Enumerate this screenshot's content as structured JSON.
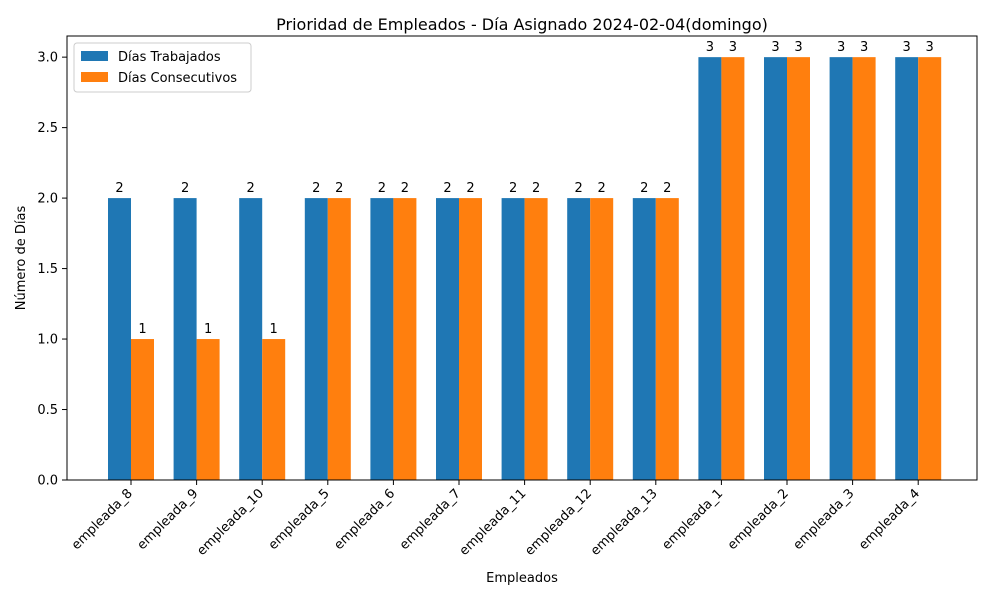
{
  "chart_data": {
    "type": "bar",
    "title": "Prioridad de Empleados - Día Asignado 2024-02-04(domingo)",
    "xlabel": "Empleados",
    "ylabel": "Número de Días",
    "ylim": [
      0,
      3.15
    ],
    "yticks": [
      "0.0",
      "0.5",
      "1.0",
      "1.5",
      "2.0",
      "2.5",
      "3.0"
    ],
    "grid": false,
    "legend_position": "top-left",
    "categories": [
      "empleada_8",
      "empleada_9",
      "empleada_10",
      "empleada_5",
      "empleada_6",
      "empleada_7",
      "empleada_11",
      "empleada_12",
      "empleada_13",
      "empleada_1",
      "empleada_2",
      "empleada_3",
      "empleada_4"
    ],
    "series": [
      {
        "name": "Días Trabajados",
        "color": "#1f77b4",
        "values": [
          2,
          2,
          2,
          2,
          2,
          2,
          2,
          2,
          2,
          3,
          3,
          3,
          3
        ]
      },
      {
        "name": "Días Consecutivos",
        "color": "#ff7f0e",
        "values": [
          1,
          1,
          1,
          2,
          2,
          2,
          2,
          2,
          2,
          3,
          3,
          3,
          3
        ]
      }
    ]
  }
}
